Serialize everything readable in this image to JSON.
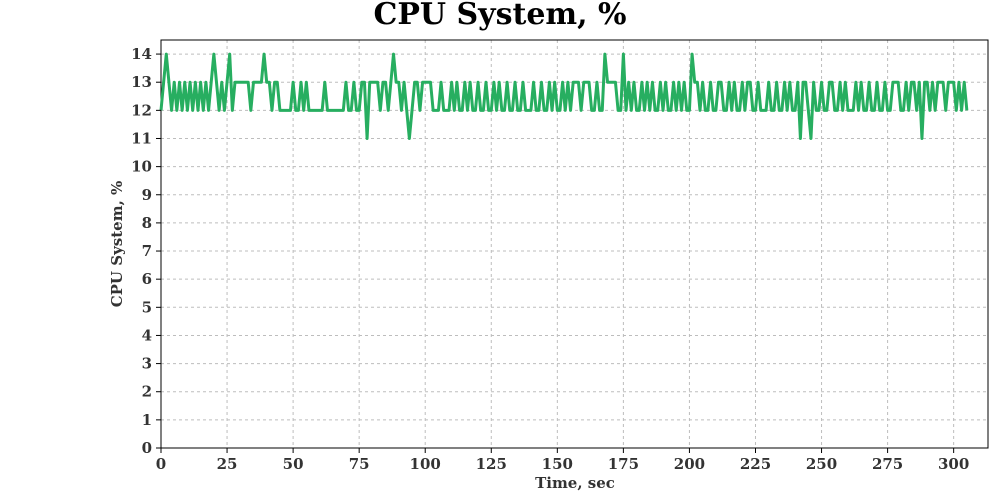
{
  "chart_data": {
    "type": "line",
    "title": "CPU System, %",
    "xlabel": "Time, sec",
    "ylabel": "CPU System, %",
    "xlim": [
      0,
      313
    ],
    "ylim": [
      0,
      14.5
    ],
    "x_ticks": [
      0,
      25,
      50,
      75,
      100,
      125,
      150,
      175,
      200,
      225,
      250,
      275,
      300
    ],
    "y_ticks": [
      0,
      1,
      2,
      3,
      4,
      5,
      6,
      7,
      8,
      9,
      10,
      11,
      12,
      13,
      14
    ],
    "grid": true,
    "legend": "none",
    "x_step": 1,
    "series": [
      {
        "color": "#27ae60",
        "values": [
          12,
          13,
          14,
          13,
          12,
          13,
          12,
          13,
          12,
          13,
          12,
          13,
          12,
          13,
          12,
          13,
          12,
          13,
          12,
          13,
          14,
          13,
          12,
          13,
          12,
          13,
          14,
          12,
          13,
          13,
          13,
          13,
          13,
          13,
          12,
          13,
          13,
          13,
          13,
          14,
          13,
          13,
          12,
          13,
          13,
          12,
          12,
          12,
          12,
          12,
          13,
          12,
          12,
          13,
          12,
          13,
          12,
          12,
          12,
          12,
          12,
          12,
          13,
          12,
          12,
          12,
          12,
          12,
          12,
          12,
          13,
          12,
          12,
          13,
          12,
          12,
          13,
          13,
          11,
          13,
          13,
          13,
          13,
          12,
          13,
          13,
          12,
          13,
          14,
          13,
          13,
          12,
          13,
          12,
          11,
          12,
          13,
          13,
          12,
          13,
          13,
          13,
          13,
          12,
          12,
          12,
          13,
          12,
          12,
          12,
          13,
          12,
          13,
          12,
          12,
          13,
          12,
          13,
          12,
          12,
          13,
          12,
          12,
          13,
          12,
          12,
          13,
          12,
          13,
          12,
          12,
          13,
          12,
          12,
          13,
          12,
          12,
          13,
          12,
          12,
          12,
          13,
          12,
          12,
          13,
          12,
          12,
          13,
          12,
          13,
          12,
          12,
          13,
          12,
          13,
          12,
          13,
          13,
          13,
          12,
          13,
          13,
          13,
          12,
          12,
          13,
          12,
          12,
          14,
          13,
          13,
          13,
          13,
          12,
          12,
          14,
          12,
          13,
          12,
          13,
          12,
          12,
          13,
          12,
          13,
          12,
          13,
          12,
          12,
          13,
          12,
          13,
          12,
          12,
          13,
          12,
          13,
          12,
          13,
          12,
          12,
          14,
          13,
          13,
          12,
          13,
          12,
          12,
          13,
          12,
          12,
          13,
          13,
          12,
          12,
          13,
          12,
          13,
          12,
          12,
          13,
          12,
          13,
          13,
          12,
          12,
          13,
          12,
          12,
          12,
          13,
          12,
          12,
          13,
          12,
          12,
          13,
          12,
          13,
          12,
          12,
          13,
          11,
          13,
          13,
          12,
          11,
          13,
          12,
          12,
          13,
          12,
          12,
          13,
          13,
          12,
          12,
          13,
          12,
          13,
          12,
          12,
          12,
          13,
          12,
          13,
          12,
          12,
          13,
          12,
          12,
          13,
          12,
          12,
          13,
          12,
          12,
          13,
          13,
          13,
          12,
          12,
          13,
          12,
          13,
          13,
          12,
          13,
          11,
          13,
          13,
          12,
          13,
          12,
          13,
          13,
          13,
          12,
          13,
          13,
          13,
          12,
          13,
          12,
          13,
          12
        ]
      }
    ]
  }
}
